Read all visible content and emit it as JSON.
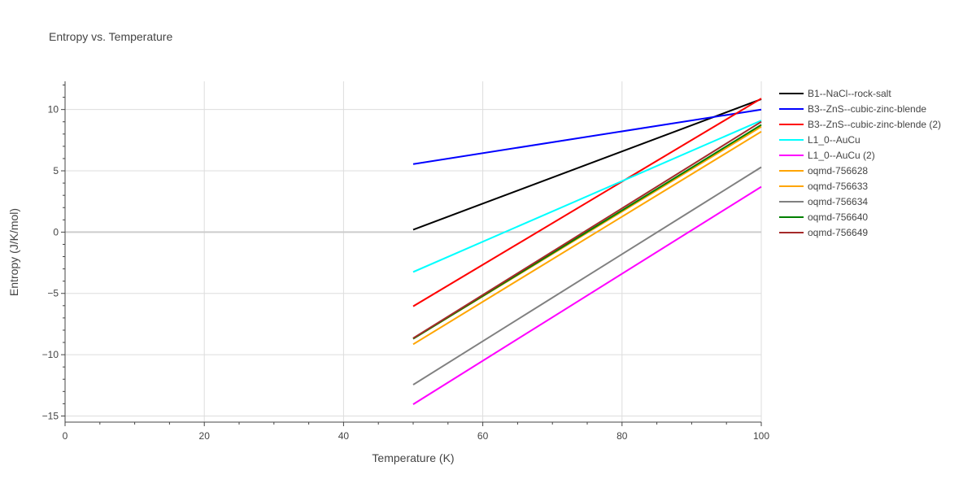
{
  "chart_data": {
    "type": "line",
    "title": "Entropy vs. Temperature",
    "xlabel": "Temperature (K)",
    "ylabel": "Entropy (J/K/mol)",
    "xlim": [
      0,
      100
    ],
    "ylim": [
      -15.5,
      12.3
    ],
    "xticks": [
      0,
      20,
      40,
      60,
      80,
      100
    ],
    "yticks": [
      -15,
      -10,
      -5,
      0,
      5,
      10
    ],
    "grid": true,
    "legend_position": "right",
    "series": [
      {
        "name": "B1--NaCl--rock-salt",
        "color": "#000000",
        "x": [
          50,
          100
        ],
        "y": [
          0.2,
          10.85
        ]
      },
      {
        "name": "B3--ZnS--cubic-zinc-blende",
        "color": "#0000ff",
        "x": [
          50,
          100
        ],
        "y": [
          5.55,
          10.0
        ]
      },
      {
        "name": "B3--ZnS--cubic-zinc-blende (2)",
        "color": "#ff0000",
        "x": [
          50,
          100
        ],
        "y": [
          -6.05,
          10.9
        ]
      },
      {
        "name": "L1_0--AuCu",
        "color": "#00ffff",
        "x": [
          50,
          100
        ],
        "y": [
          -3.25,
          9.1
        ]
      },
      {
        "name": "L1_0--AuCu (2)",
        "color": "#ff00ff",
        "x": [
          50,
          100
        ],
        "y": [
          -14.05,
          3.7
        ]
      },
      {
        "name": "oqmd-756628",
        "color": "#ffa500",
        "x": [
          50,
          100
        ],
        "y": [
          -8.7,
          8.6
        ]
      },
      {
        "name": "oqmd-756633",
        "color": "#ffa500",
        "x": [
          50,
          100
        ],
        "y": [
          -9.15,
          8.2
        ]
      },
      {
        "name": "oqmd-756634",
        "color": "#808080",
        "x": [
          50,
          100
        ],
        "y": [
          -12.45,
          5.3
        ]
      },
      {
        "name": "oqmd-756640",
        "color": "#008000",
        "x": [
          50,
          100
        ],
        "y": [
          -8.7,
          8.75
        ]
      },
      {
        "name": "oqmd-756649",
        "color": "#a52a2a",
        "x": [
          50,
          100
        ],
        "y": [
          -8.65,
          9.0
        ]
      }
    ]
  }
}
